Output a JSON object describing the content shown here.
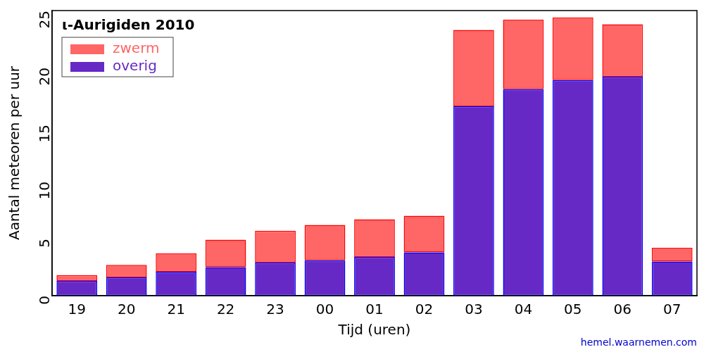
{
  "chart_data": {
    "type": "bar",
    "title": "ι-Aurigiden 2010",
    "x_label": "Tijd (uren)",
    "y_label": "Aantal meteoren per uur",
    "annotation": "hemel.waarnemen.com",
    "categories": [
      "19",
      "20",
      "21",
      "22",
      "23",
      "00",
      "01",
      "02",
      "03",
      "04",
      "05",
      "06",
      "07"
    ],
    "series": [
      {
        "name": "zwerm",
        "color": "#ff6666",
        "values": [
          0.5,
          1.1,
          1.6,
          2.4,
          2.8,
          3.1,
          3.3,
          3.2,
          6.7,
          6.1,
          5.5,
          4.6,
          1.2
        ]
      },
      {
        "name": "overig",
        "color": "#6629c6",
        "values": [
          1.3,
          1.6,
          2.1,
          2.5,
          2.9,
          3.1,
          3.4,
          3.8,
          16.6,
          18.1,
          18.9,
          19.2,
          3.0
        ]
      }
    ],
    "stacked": true,
    "legend": "upper left",
    "grid": false,
    "ylim": [
      0,
      25
    ],
    "yticks": [
      0,
      5,
      10,
      15,
      20,
      25
    ]
  }
}
